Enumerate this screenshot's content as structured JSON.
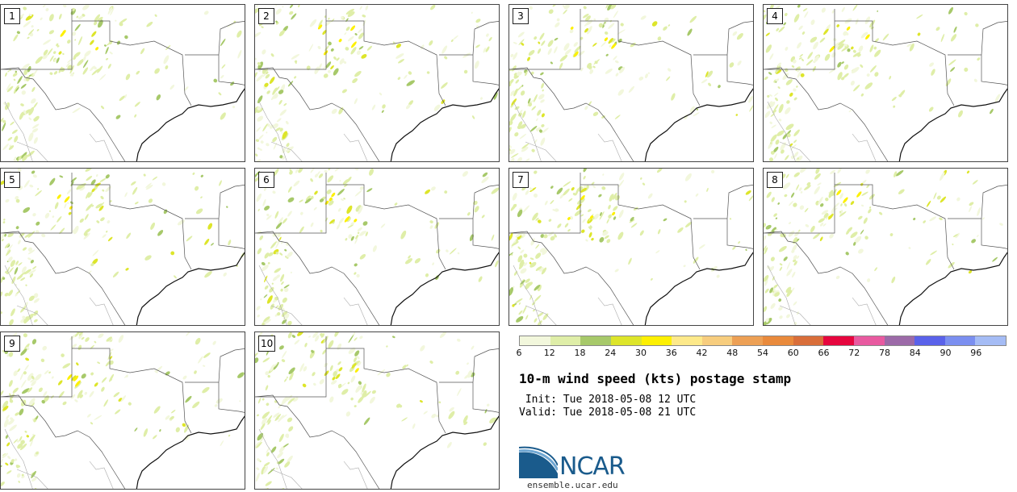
{
  "panels": [
    "1",
    "2",
    "3",
    "4",
    "5",
    "6",
    "7",
    "8",
    "9",
    "10"
  ],
  "colorbar": {
    "colors": [
      "#f2f7dc",
      "#dfeea8",
      "#a7c96a",
      "#dde52a",
      "#fdf002",
      "#fde98a",
      "#f7cd7e",
      "#eda055",
      "#e98a3c",
      "#d96e3a",
      "#e6063e",
      "#e85aa0",
      "#9c6aa8",
      "#5a62ea",
      "#7b8ff0",
      "#a5bcf5"
    ],
    "ticks": [
      "6",
      "12",
      "18",
      "24",
      "30",
      "36",
      "42",
      "48",
      "54",
      "60",
      "66",
      "72",
      "78",
      "84",
      "90",
      "96"
    ]
  },
  "title": "10-m wind speed (kts) postage stamp",
  "init_line": " Init: Tue 2018-05-08 12 UTC",
  "valid_line": "Valid: Tue 2018-05-08 21 UTC",
  "logo": {
    "text": "NCAR",
    "url": "ensemble.ucar.edu"
  }
}
